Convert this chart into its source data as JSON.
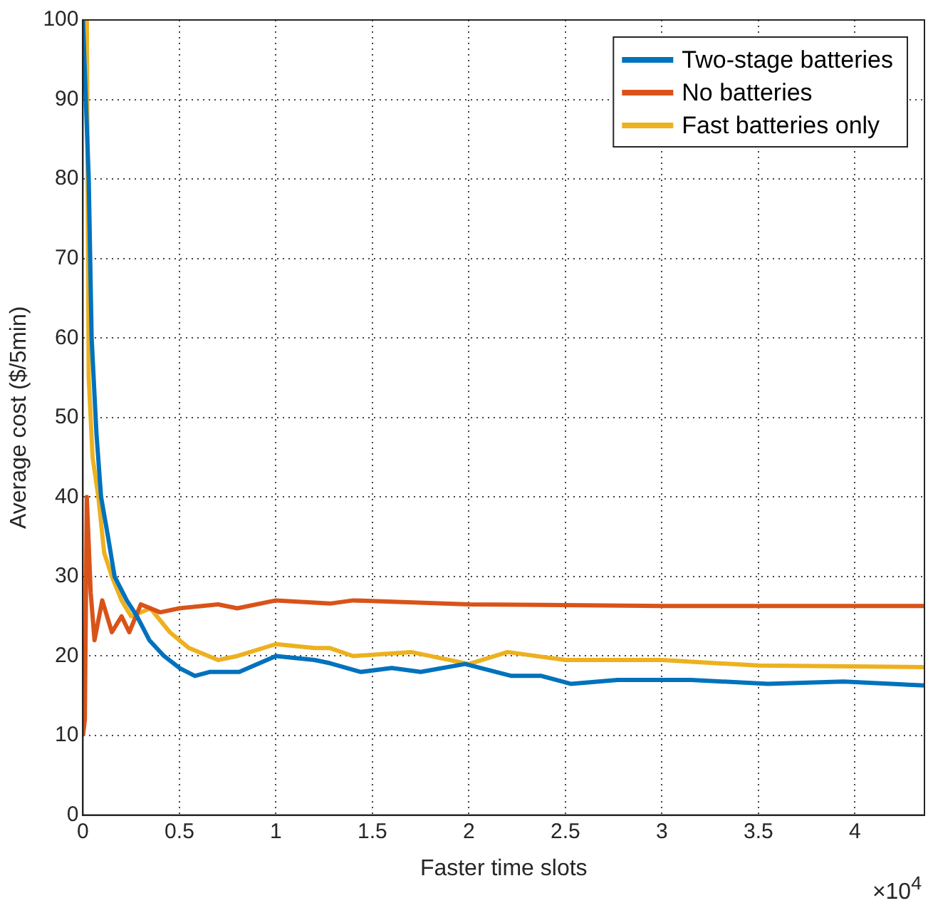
{
  "chart_data": {
    "type": "line",
    "xlabel": "Faster time slots",
    "ylabel": "Average cost ($/5min)",
    "xlim": [
      0,
      4.36
    ],
    "ylim": [
      0,
      100
    ],
    "xticks": [
      0,
      0.5,
      1,
      1.5,
      2,
      2.5,
      3,
      3.5,
      4
    ],
    "yticks": [
      0,
      10,
      20,
      30,
      40,
      50,
      60,
      70,
      80,
      90,
      100
    ],
    "grid": true,
    "legend": "top right",
    "line_style": "solid",
    "marker": "none",
    "annotations": [
      "×10$^{4}$"
    ],
    "series": [
      {
        "name": "Two-stage batteries",
        "color": "#0072bd",
        "x": [
          0,
          0.03,
          0.045,
          0.07,
          0.094,
          0.13,
          0.164,
          0.227,
          0.28,
          0.344,
          0.42,
          0.5,
          0.58,
          0.656,
          0.81,
          1,
          1.2,
          1.28,
          1.44,
          1.6,
          1.75,
          1.98,
          2.22,
          2.375,
          2.53,
          2.77,
          3.15,
          3.55,
          3.94,
          4.36
        ],
        "values": [
          100,
          80,
          60,
          48,
          40,
          35,
          30,
          27,
          25,
          22,
          20,
          18.5,
          17.5,
          18,
          18,
          20,
          19.5,
          19.1,
          18,
          18.5,
          18,
          19,
          17.5,
          17.5,
          16.5,
          17,
          17,
          16.5,
          16.8,
          16.3
        ]
      },
      {
        "name": "No batteries",
        "color": "#d95319",
        "x": [
          0,
          0.01,
          0.02,
          0.04,
          0.06,
          0.1,
          0.15,
          0.2,
          0.24,
          0.3,
          0.4,
          0.5,
          0.7,
          0.8,
          1,
          1.28,
          1.4,
          2,
          3,
          4.36
        ],
        "values": [
          10,
          12,
          40,
          28,
          22,
          27,
          23,
          25,
          23,
          26.5,
          25.5,
          26,
          26.5,
          26,
          27,
          26.6,
          27,
          26.5,
          26.3,
          26.3
        ]
      },
      {
        "name": "Fast batteries only",
        "color": "#edb120",
        "x": [
          0,
          0.02,
          0.03,
          0.05,
          0.08,
          0.11,
          0.15,
          0.2,
          0.25,
          0.35,
          0.45,
          0.55,
          0.7,
          0.8,
          1,
          1.2,
          1.28,
          1.4,
          1.7,
          2,
          2.2,
          2.5,
          3,
          3.5,
          4.36
        ],
        "values": [
          100,
          100,
          55,
          45,
          40,
          33,
          30,
          27,
          25,
          26,
          23,
          21,
          19.5,
          20,
          21.5,
          21,
          21,
          20,
          20.5,
          19,
          20.5,
          19.5,
          19.5,
          18.8,
          18.6
        ]
      }
    ]
  }
}
